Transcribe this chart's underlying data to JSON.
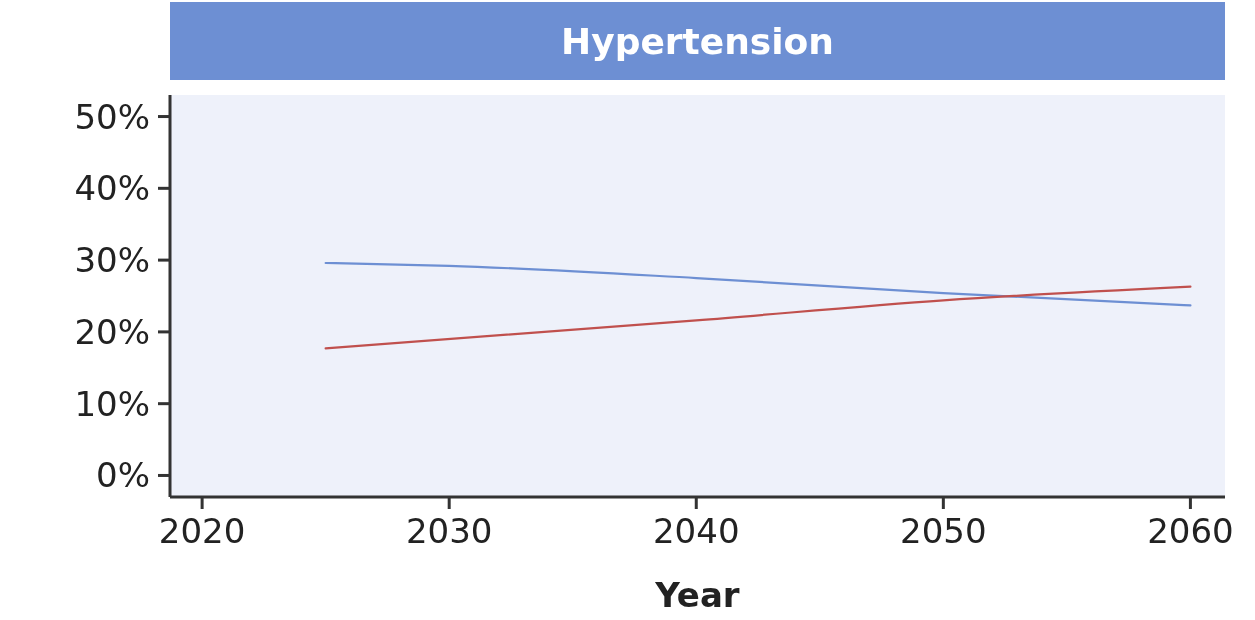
{
  "chart_data": {
    "type": "line",
    "title": "Hypertension",
    "xlabel": "Year",
    "xlim": [
      2018.7,
      2061.4
    ],
    "xticks": [
      2020,
      2030,
      2040,
      2050,
      2060
    ],
    "ylim": [
      -3,
      53
    ],
    "yticks": [
      {
        "value": 0,
        "label": "0%"
      },
      {
        "value": 10,
        "label": "10%"
      },
      {
        "value": 20,
        "label": "20%"
      },
      {
        "value": 30,
        "label": "30%"
      },
      {
        "value": 40,
        "label": "40%"
      },
      {
        "value": 50,
        "label": "50%"
      }
    ],
    "grid": false,
    "series": [
      {
        "color": "#6d8fd3",
        "x": [
          2025,
          2030,
          2040,
          2050,
          2060
        ],
        "values": [
          29.6,
          29.2,
          27.5,
          25.4,
          23.7
        ]
      },
      {
        "color": "#c0504d",
        "x": [
          2025,
          2040,
          2050,
          2060
        ],
        "values": [
          17.7,
          21.6,
          24.4,
          26.3
        ]
      }
    ]
  }
}
